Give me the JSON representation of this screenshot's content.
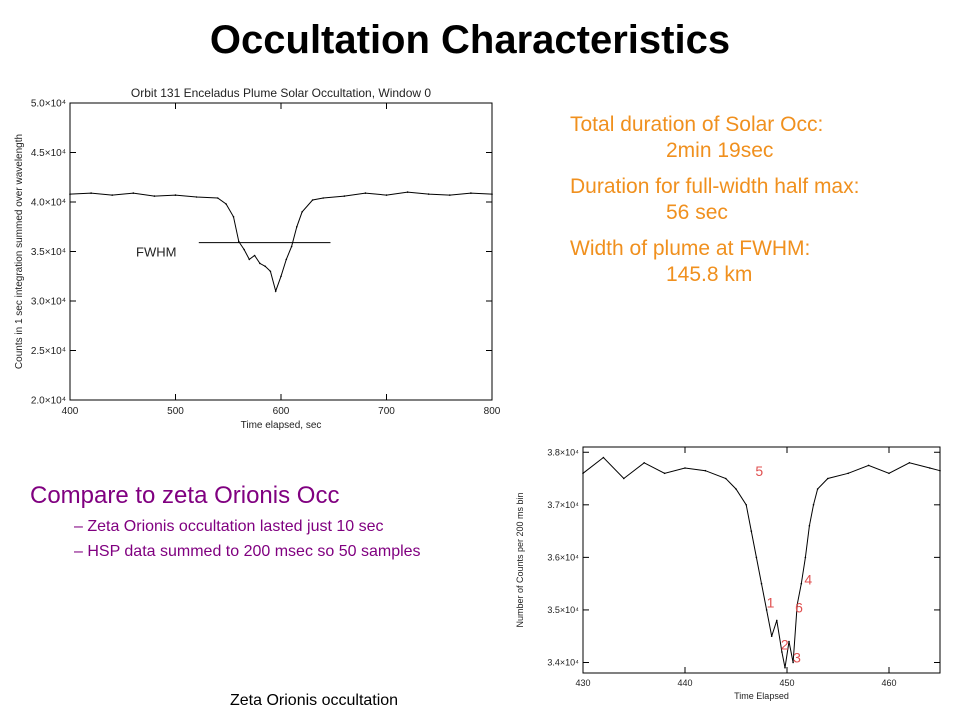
{
  "slide": {
    "title": "Occultation Characteristics",
    "stats": {
      "total_label": "Total duration of Solar Occ:",
      "total_value": "2min 19sec",
      "fwhm_duration_label": "Duration for full-width half max:",
      "fwhm_duration_value": "56 sec",
      "plume_width_label": "Width of plume at FWHM:",
      "plume_width_value": "145.8 km"
    },
    "compare": {
      "heading": "Compare to zeta Orionis Occ",
      "bullets": [
        "– Zeta Orionis occultation lasted just 10 sec",
        "– HSP data summed to 200 msec so 50 samples"
      ]
    },
    "caption": "Zeta Orionis occultation"
  },
  "chart_data": [
    {
      "type": "line",
      "title": "Orbit 131 Enceladus Plume Solar Occultation, Window 0",
      "xlabel": "Time elapsed, sec",
      "ylabel": "Counts in 1 sec integration summed over wavelength",
      "xlim": [
        400,
        800
      ],
      "ylim": [
        20000,
        50000
      ],
      "x_ticks": [
        400,
        500,
        600,
        700,
        800
      ],
      "y_ticks": [
        "2.0×10⁴",
        "2.5×10⁴",
        "3.0×10⁴",
        "3.5×10⁴",
        "4.0×10⁴",
        "4.5×10⁴",
        "5.0×10⁴"
      ],
      "y_tick_values": [
        20000,
        25000,
        30000,
        35000,
        40000,
        45000,
        50000
      ],
      "annotation": {
        "label": "FWHM",
        "y": 35900,
        "x_range": [
          560,
          645
        ]
      },
      "series": [
        {
          "x": [
            400,
            420,
            440,
            460,
            480,
            500,
            520,
            540,
            548,
            555,
            560,
            565,
            570,
            575,
            580,
            585,
            590,
            595,
            600,
            605,
            610,
            615,
            620,
            630,
            640,
            660,
            680,
            700,
            720,
            740,
            760,
            780,
            800
          ],
          "values": [
            40800,
            40900,
            40700,
            40900,
            40600,
            40700,
            40500,
            40400,
            39800,
            38500,
            36000,
            35200,
            34200,
            34600,
            33800,
            33500,
            33000,
            31000,
            32500,
            34200,
            35500,
            37500,
            39000,
            40200,
            40400,
            40600,
            40900,
            40700,
            41000,
            40800,
            40700,
            40900,
            40800
          ]
        }
      ]
    },
    {
      "type": "line",
      "title": "",
      "xlabel": "Time Elapsed",
      "ylabel": "Number of Counts per 200 ms bin",
      "xlim": [
        430,
        465
      ],
      "ylim": [
        33800,
        38100
      ],
      "x_ticks": [
        430,
        440,
        450,
        460
      ],
      "y_ticks": [
        "3.4×10⁴",
        "3.5×10⁴",
        "3.6×10⁴",
        "3.7×10⁴",
        "3.8×10⁴"
      ],
      "y_tick_values": [
        34000,
        35000,
        36000,
        37000,
        38000
      ],
      "point_labels": [
        {
          "label": "1",
          "x": 448.0,
          "y": 35050
        },
        {
          "label": "2",
          "x": 449.4,
          "y": 34250
        },
        {
          "label": "3",
          "x": 450.6,
          "y": 34000
        },
        {
          "label": "4",
          "x": 451.7,
          "y": 35480
        },
        {
          "label": "5",
          "x": 446.9,
          "y": 37550
        },
        {
          "label": "6",
          "x": 450.8,
          "y": 34950
        }
      ],
      "series": [
        {
          "x": [
            430,
            432,
            434,
            436,
            438,
            440,
            442,
            444,
            445,
            446,
            446.5,
            447,
            447.5,
            448,
            448.5,
            449,
            449.5,
            449.8,
            450.2,
            450.6,
            451,
            451.4,
            451.8,
            452.2,
            452.6,
            453,
            454,
            456,
            458,
            460,
            462,
            464,
            465
          ],
          "values": [
            37600,
            37900,
            37500,
            37800,
            37600,
            37700,
            37650,
            37500,
            37300,
            37000,
            36500,
            36000,
            35500,
            35000,
            34500,
            34800,
            34200,
            33900,
            34400,
            34000,
            35100,
            35500,
            36000,
            36600,
            37000,
            37300,
            37500,
            37600,
            37750,
            37600,
            37800,
            37700,
            37650
          ]
        }
      ]
    }
  ]
}
